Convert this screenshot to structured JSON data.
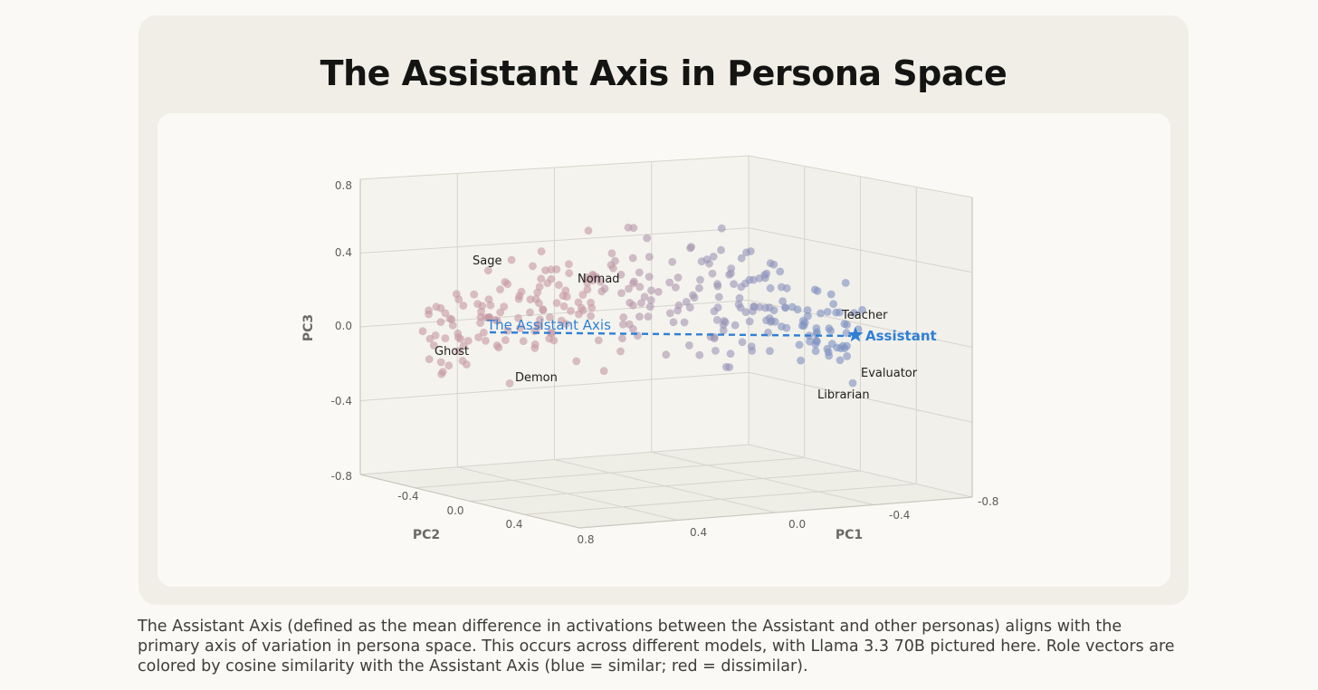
{
  "title": "The Assistant Axis in Persona Space",
  "caption": "The Assistant Axis (defined as the mean difference in activations between the Assistant and other personas) aligns with the primary axis of variation in persona space. This occurs across different models, with Llama 3.3 70B pictured here. Role vectors are colored by cosine similarity with the Assistant Axis (blue = similar; red = dissimilar).",
  "chart_data": {
    "type": "scatter",
    "projection": "3d",
    "axes": {
      "x": {
        "label": "PC1",
        "ticks": [
          "0.4",
          "0.0",
          "-0.4",
          "-0.8"
        ]
      },
      "y": {
        "label": "PC2",
        "ticks": [
          "-0.4",
          "0.0",
          "0.4",
          "0.8"
        ]
      },
      "z": {
        "label": "PC3",
        "ticks": [
          "0.8",
          "0.4",
          "0.0",
          "-0.4",
          "-0.8"
        ]
      }
    },
    "color_encoding": {
      "similar": "#7f93c4",
      "dissimilar": "#c79aa3"
    },
    "assistant_axis": {
      "label": "The Assistant Axis",
      "color": "#2f7fd6"
    },
    "assistant": {
      "label": "Assistant",
      "color": "#2f7fd6"
    },
    "labeled_personas": [
      "Sage",
      "Nomad",
      "Ghost",
      "Demon",
      "Teacher",
      "Evaluator",
      "Librarian"
    ],
    "point_count": 300
  }
}
